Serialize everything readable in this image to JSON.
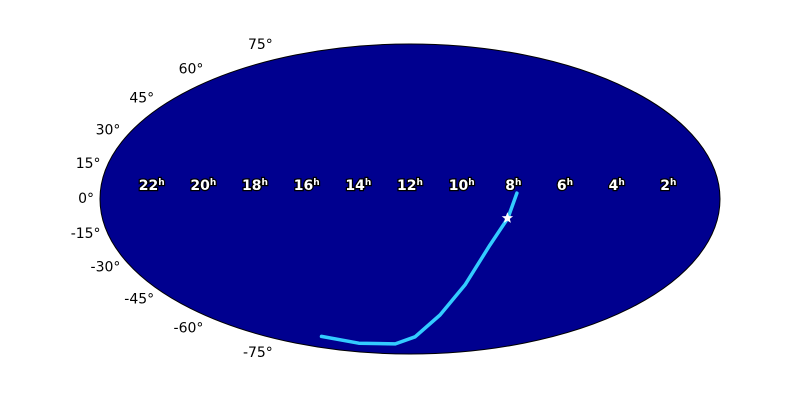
{
  "chart_data": {
    "type": "mollweide",
    "background": "#00008f",
    "xticks": [
      22,
      20,
      18,
      16,
      14,
      12,
      10,
      8,
      6,
      4,
      2
    ],
    "ra_unit": "h",
    "yticks": [
      {
        "value": 75,
        "label": "75°"
      },
      {
        "value": 60,
        "label": "60°"
      },
      {
        "value": 45,
        "label": "45°"
      },
      {
        "value": 30,
        "label": "30°"
      },
      {
        "value": 15,
        "label": "15°"
      },
      {
        "value": 0,
        "label": "0°"
      },
      {
        "value": -15,
        "label": "-15°"
      },
      {
        "value": -30,
        "label": "-30°"
      },
      {
        "value": -45,
        "label": "-45°"
      },
      {
        "value": -60,
        "label": "-60°"
      },
      {
        "value": -75,
        "label": "-75°"
      }
    ],
    "series": [
      {
        "color": "#33ccff",
        "x": [
          7.86,
          8.18,
          8.76,
          9.44,
          10.25,
          11.57,
          13.6,
          17.4,
          19.4
        ],
        "y": [
          2.8,
          -9,
          -21.9,
          -41.9,
          -58.7,
          -73,
          -78.6,
          -78,
          -72.7
        ]
      }
    ],
    "marker": {
      "x": 8.2,
      "y": -9,
      "color": "#ffffff"
    }
  }
}
